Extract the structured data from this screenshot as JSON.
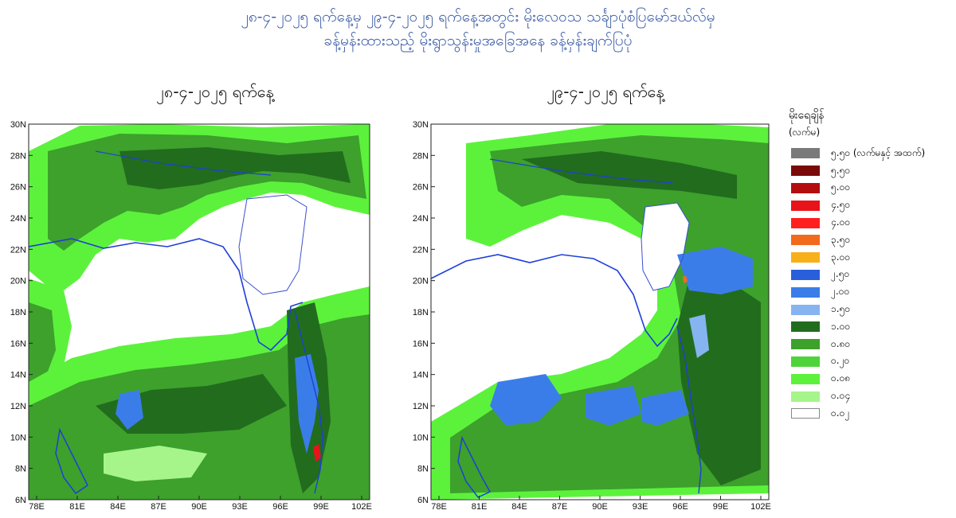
{
  "header": {
    "title_line1": "၂၈-၄-၂၀၂၅ ရက်နေ့မှ ၂၉-၄-၂၀၂၅ ရက်နေ့အတွင်း မိုးလေဝသ သင်္ချာပုံစံပြမော်ဒယ်လ်မှ",
    "title_line2": "ခန့်မှန်းထားသည့် မိုးရွာသွန်းမှုအခြေအနေ ခန့်မှန်းချက်ပြပုံ"
  },
  "maps": [
    {
      "title": "၂၈-၄-၂၀၂၅ ရက်နေ့",
      "lat_ticks": [
        "30N",
        "28N",
        "26N",
        "24N",
        "22N",
        "20N",
        "18N",
        "16N",
        "14N",
        "12N",
        "10N",
        "8N",
        "6N"
      ],
      "lon_ticks": [
        "78E",
        "81E",
        "84E",
        "87E",
        "90E",
        "93E",
        "96E",
        "99E",
        "102E"
      ]
    },
    {
      "title": "၂၉-၄-၂၀၂၅ ရက်နေ့",
      "lat_ticks": [
        "30N",
        "28N",
        "26N",
        "24N",
        "22N",
        "20N",
        "18N",
        "16N",
        "14N",
        "12N",
        "10N",
        "8N",
        "6N"
      ],
      "lon_ticks": [
        "78E",
        "81E",
        "84E",
        "87E",
        "90E",
        "93E",
        "96E",
        "99E",
        "102E"
      ]
    }
  ],
  "legend": {
    "title": "မိုးရေချိန်",
    "unit": "(လက်မ)",
    "items": [
      {
        "label": "၅.၅၀ (လက်မနှင့် အထက်)",
        "color": "#7a7a7a"
      },
      {
        "label": "၅.၅၀",
        "color": "#7a0a0a"
      },
      {
        "label": "၅.၀၀",
        "color": "#b40d0d"
      },
      {
        "label": "၄.၅၀",
        "color": "#e8141a"
      },
      {
        "label": "၄.၀၀",
        "color": "#ff1f1f"
      },
      {
        "label": "၃.၅၀",
        "color": "#f26a1b"
      },
      {
        "label": "၃.၀၀",
        "color": "#f7b01a"
      },
      {
        "label": "၂.၅၀",
        "color": "#2a5fdc"
      },
      {
        "label": "၂.၀၀",
        "color": "#3b7de8"
      },
      {
        "label": "၁.၅၀",
        "color": "#86b4f0"
      },
      {
        "label": "၁.၀၀",
        "color": "#226c1e"
      },
      {
        "label": "၀.၈၀",
        "color": "#3da12c"
      },
      {
        "label": "၀.၂၀",
        "color": "#4fd33a"
      },
      {
        "label": "၀.၀၈",
        "color": "#5cf23c"
      },
      {
        "label": "၀.၀၄",
        "color": "#a6f58a"
      },
      {
        "label": "၀.၀၂",
        "color": "#ffffff"
      }
    ]
  }
}
